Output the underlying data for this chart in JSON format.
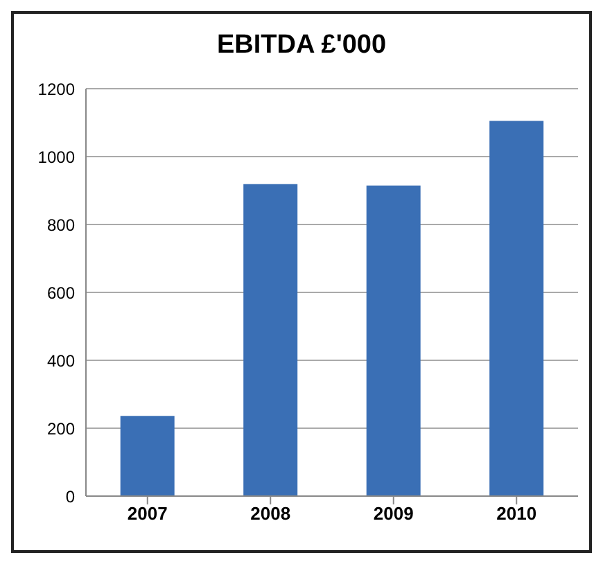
{
  "chart_data": {
    "type": "bar",
    "title": "EBITDA £'000",
    "categories": [
      "2007",
      "2008",
      "2009",
      "2010"
    ],
    "values": [
      236,
      919,
      915,
      1105
    ],
    "color": "#3a6fb5",
    "ylim": [
      0,
      1200
    ],
    "yticks": [
      0,
      200,
      400,
      600,
      800,
      1000,
      1200
    ],
    "grid": "y"
  }
}
